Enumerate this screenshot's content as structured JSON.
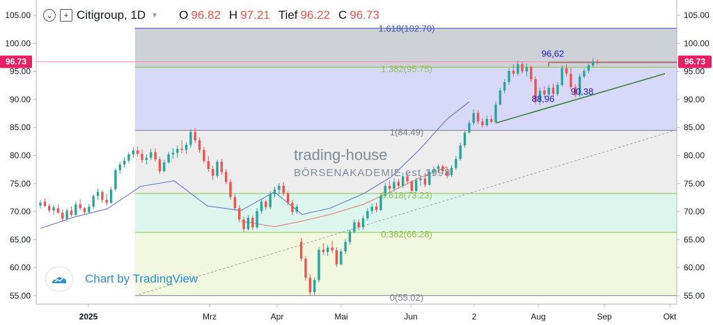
{
  "header": {
    "symbol": "Citigroup, 1D",
    "open_label": "O",
    "open": "96.82",
    "high_label": "H",
    "high": "97.21",
    "low_label": "Tief",
    "low": "96.22",
    "close_label": "C",
    "close": "96.73",
    "value_color": "#ef5350"
  },
  "watermark": {
    "text": "Chart by TradingView",
    "color": "#2a8ed8",
    "icon": "tradingview-cloud-icon"
  },
  "brand": {
    "line1": "trading-house",
    "line2": "BÖRSENAKADEMIE est 1998"
  },
  "chart_data": {
    "type": "candlestick",
    "ylim": [
      53.5,
      107
    ],
    "y_ticks": [
      55,
      60,
      65,
      70,
      75,
      80,
      85,
      90,
      95,
      100,
      105
    ],
    "x_ticks": [
      "2025",
      "Mrz",
      "Apr",
      "Mai",
      "Jun",
      "2",
      "Aug",
      "Sep",
      "Okt"
    ],
    "last_price": {
      "value": 96.73,
      "label": "96.73",
      "color": "#e91e63"
    },
    "fibonacci": [
      {
        "ratio": "1.618",
        "value": 102.7,
        "label": "1.618(102.70)",
        "label_color": "#3f51b5"
      },
      {
        "ratio": "1.382",
        "value": 95.75,
        "label": "1.382(95.75)",
        "label_color": "#8bc34a"
      },
      {
        "ratio": "1",
        "value": 84.49,
        "label": "1(84.49)",
        "label_color": "#787b86"
      },
      {
        "ratio": "0.618",
        "value": 73.23,
        "label": "0.618(73.23)",
        "label_color": "#8bc34a"
      },
      {
        "ratio": "0.382",
        "value": 66.28,
        "label": "0.382(66.28)",
        "label_color": "#8bc34a"
      },
      {
        "ratio": "0",
        "value": 55.02,
        "label": "0(55.02)",
        "label_color": "#787b86"
      }
    ],
    "fib_zone_colors": [
      "#a5abb5",
      "#b8b8f2",
      "#dedede",
      "#bfefe0",
      "#e6f2c4"
    ],
    "annotations": [
      {
        "text": "96,62",
        "value": 96.62,
        "color": "#1a1acc"
      },
      {
        "text": "88,96",
        "value": 88.96,
        "color": "#1a1acc"
      },
      {
        "text": "90,38",
        "value": 90.38,
        "color": "#1a1acc"
      }
    ],
    "resistance_level": 96.62,
    "support_trendline": [
      85.8,
      94.6
    ],
    "long_trendline": [
      55.0,
      84.6
    ],
    "ma_short": {
      "color": "#5c6bc0",
      "points": [
        [
          0,
          67.0
        ],
        [
          0.06,
          69.0
        ],
        [
          0.12,
          70.5
        ],
        [
          0.18,
          74.5
        ],
        [
          0.24,
          75.5
        ],
        [
          0.3,
          71.0
        ],
        [
          0.36,
          70.2
        ],
        [
          0.42,
          73.5
        ],
        [
          0.47,
          69.5
        ],
        [
          0.52,
          70.6
        ],
        [
          0.58,
          73.2
        ],
        [
          0.63,
          76.2
        ],
        [
          0.68,
          81.0
        ],
        [
          0.73,
          86.5
        ],
        [
          0.77,
          89.6
        ]
      ]
    },
    "ma_long": {
      "color": "#e57373",
      "points": [
        [
          0.36,
          68.3
        ],
        [
          0.42,
          67.3
        ],
        [
          0.47,
          68.3
        ],
        [
          0.52,
          69.5
        ],
        [
          0.58,
          71.3
        ],
        [
          0.63,
          73.6
        ],
        [
          0.68,
          76.0
        ],
        [
          0.73,
          78.0
        ]
      ]
    },
    "candles": [
      [
        71.1,
        72.1,
        70.6,
        71.6
      ],
      [
        71.8,
        72.4,
        70.8,
        71.0
      ],
      [
        71.0,
        71.4,
        69.8,
        70.2
      ],
      [
        70.2,
        71.2,
        69.5,
        70.8
      ],
      [
        70.6,
        71.3,
        69.6,
        69.8
      ],
      [
        69.8,
        70.4,
        68.2,
        68.7
      ],
      [
        68.7,
        70.6,
        68.2,
        70.2
      ],
      [
        70.2,
        70.9,
        69.1,
        69.4
      ],
      [
        69.4,
        71.8,
        69.2,
        71.3
      ],
      [
        71.3,
        72.2,
        70.2,
        70.6
      ],
      [
        70.6,
        70.8,
        69.5,
        69.9
      ],
      [
        69.9,
        71.4,
        69.6,
        70.9
      ],
      [
        70.9,
        73.1,
        70.5,
        72.8
      ],
      [
        72.8,
        74.1,
        72.1,
        73.5
      ],
      [
        73.5,
        73.9,
        71.6,
        72.1
      ],
      [
        72.1,
        73.2,
        71.1,
        71.6
      ],
      [
        71.6,
        74.4,
        71.4,
        73.9
      ],
      [
        74.0,
        77.8,
        73.6,
        77.4
      ],
      [
        77.4,
        78.9,
        76.8,
        78.4
      ],
      [
        78.4,
        79.7,
        77.8,
        79.1
      ],
      [
        79.1,
        80.6,
        78.6,
        80.2
      ],
      [
        80.2,
        81.5,
        79.6,
        80.9
      ],
      [
        80.9,
        81.6,
        79.8,
        80.3
      ],
      [
        80.3,
        81.1,
        78.7,
        79.2
      ],
      [
        79.2,
        80.2,
        78.4,
        79.6
      ],
      [
        79.6,
        81.2,
        79.2,
        80.6
      ],
      [
        80.6,
        81.3,
        78.9,
        79.3
      ],
      [
        79.3,
        79.8,
        76.7,
        77.2
      ],
      [
        77.2,
        79.3,
        77.0,
        78.8
      ],
      [
        78.8,
        80.7,
        78.5,
        80.2
      ],
      [
        80.2,
        81.3,
        79.4,
        80.5
      ],
      [
        80.5,
        81.8,
        79.6,
        81.2
      ],
      [
        81.2,
        82.7,
        80.4,
        81.0
      ],
      [
        81.0,
        82.4,
        80.3,
        81.9
      ],
      [
        81.9,
        84.7,
        81.4,
        84.2
      ],
      [
        84.2,
        84.9,
        82.2,
        82.7
      ],
      [
        82.7,
        83.2,
        80.5,
        81.0
      ],
      [
        81.0,
        81.5,
        78.6,
        79.0
      ],
      [
        79.0,
        79.9,
        77.1,
        77.6
      ],
      [
        77.6,
        78.2,
        75.6,
        76.4
      ],
      [
        76.4,
        79.3,
        76.0,
        78.9
      ],
      [
        78.9,
        79.4,
        76.6,
        77.1
      ],
      [
        77.1,
        77.6,
        74.9,
        75.3
      ],
      [
        75.3,
        75.8,
        72.1,
        72.6
      ],
      [
        72.6,
        73.1,
        70.1,
        70.6
      ],
      [
        70.6,
        71.1,
        68.1,
        68.6
      ],
      [
        68.6,
        69.1,
        66.4,
        66.9
      ],
      [
        66.9,
        69.4,
        66.6,
        68.9
      ],
      [
        68.9,
        69.3,
        66.7,
        67.2
      ],
      [
        67.2,
        70.6,
        66.9,
        70.1
      ],
      [
        70.1,
        72.3,
        69.6,
        71.8
      ],
      [
        71.8,
        72.1,
        70.3,
        70.8
      ],
      [
        70.8,
        73.6,
        70.4,
        73.1
      ],
      [
        73.1,
        74.4,
        72.6,
        73.9
      ],
      [
        73.9,
        75.1,
        73.1,
        74.6
      ],
      [
        74.6,
        75.3,
        72.8,
        73.3
      ],
      [
        73.3,
        73.6,
        71.1,
        71.6
      ],
      [
        71.6,
        72.1,
        69.4,
        69.9
      ],
      [
        70.0,
        71.3,
        69.6,
        70.9
      ],
      [
        64.6,
        65.3,
        61.1,
        61.6
      ],
      [
        61.6,
        62.1,
        57.7,
        58.2
      ],
      [
        58.2,
        58.8,
        55.0,
        55.6
      ],
      [
        55.6,
        58.3,
        55.1,
        57.8
      ],
      [
        57.8,
        63.7,
        57.4,
        63.2
      ],
      [
        63.2,
        64.4,
        62.3,
        62.8
      ],
      [
        62.8,
        64.1,
        62.1,
        63.6
      ],
      [
        63.6,
        64.8,
        62.6,
        63.1
      ],
      [
        63.1,
        63.6,
        60.1,
        60.6
      ],
      [
        60.6,
        63.4,
        60.4,
        62.9
      ],
      [
        62.9,
        65.1,
        62.4,
        64.6
      ],
      [
        64.6,
        66.8,
        64.1,
        66.4
      ],
      [
        66.4,
        68.6,
        66.1,
        68.1
      ],
      [
        68.1,
        68.6,
        66.7,
        67.2
      ],
      [
        67.2,
        69.3,
        66.8,
        68.8
      ],
      [
        68.8,
        70.6,
        68.4,
        70.1
      ],
      [
        70.1,
        71.4,
        69.6,
        70.9
      ],
      [
        70.9,
        71.6,
        69.9,
        70.3
      ],
      [
        70.3,
        73.3,
        70.1,
        72.8
      ],
      [
        72.8,
        75.1,
        72.6,
        74.6
      ],
      [
        74.6,
        75.6,
        73.4,
        74.1
      ],
      [
        74.1,
        75.9,
        73.6,
        75.3
      ],
      [
        75.3,
        75.8,
        74.1,
        74.6
      ],
      [
        74.6,
        76.9,
        74.2,
        76.3
      ],
      [
        76.3,
        76.8,
        75.0,
        75.4
      ],
      [
        75.4,
        75.6,
        73.2,
        73.7
      ],
      [
        73.7,
        76.0,
        73.4,
        75.6
      ],
      [
        75.6,
        76.5,
        74.6,
        75.9
      ],
      [
        75.9,
        76.9,
        74.4,
        74.8
      ],
      [
        74.8,
        77.6,
        74.6,
        77.1
      ],
      [
        77.1,
        78.1,
        76.4,
        77.6
      ],
      [
        77.6,
        78.5,
        76.9,
        78.1
      ],
      [
        78.1,
        78.4,
        76.8,
        77.2
      ],
      [
        77.2,
        78.0,
        75.9,
        76.5
      ],
      [
        76.5,
        78.3,
        76.2,
        77.8
      ],
      [
        77.8,
        79.9,
        77.4,
        79.4
      ],
      [
        79.4,
        82.3,
        79.1,
        81.8
      ],
      [
        81.8,
        84.6,
        81.4,
        84.1
      ],
      [
        84.1,
        86.3,
        83.8,
        85.8
      ],
      [
        85.8,
        88.2,
        85.4,
        87.6
      ],
      [
        87.6,
        88.1,
        85.6,
        86.1
      ],
      [
        86.1,
        86.6,
        85.0,
        85.4
      ],
      [
        85.4,
        87.1,
        85.1,
        86.5
      ],
      [
        86.5,
        87.2,
        85.7,
        86.0
      ],
      [
        86.0,
        89.6,
        85.7,
        89.1
      ],
      [
        89.1,
        92.1,
        88.9,
        91.6
      ],
      [
        91.6,
        93.6,
        91.1,
        93.1
      ],
      [
        93.1,
        95.6,
        92.6,
        95.1
      ],
      [
        95.1,
        96.3,
        94.1,
        94.6
      ],
      [
        94.6,
        96.9,
        94.2,
        96.3
      ],
      [
        96.3,
        96.7,
        94.6,
        95.0
      ],
      [
        95.0,
        96.4,
        94.1,
        95.8
      ],
      [
        95.8,
        96.1,
        93.1,
        93.6
      ],
      [
        93.6,
        94.1,
        89.1,
        89.6
      ],
      [
        89.6,
        92.1,
        89.0,
        91.6
      ],
      [
        91.6,
        92.4,
        90.4,
        90.9
      ],
      [
        90.9,
        92.6,
        90.5,
        92.1
      ],
      [
        92.1,
        92.8,
        90.6,
        91.0
      ],
      [
        91.0,
        93.1,
        90.6,
        92.6
      ],
      [
        92.6,
        96.1,
        92.3,
        95.6
      ],
      [
        95.6,
        96.3,
        94.1,
        94.6
      ],
      [
        94.6,
        95.6,
        91.8,
        92.2
      ],
      [
        92.2,
        92.7,
        90.4,
        90.8
      ],
      [
        90.8,
        94.6,
        90.5,
        94.1
      ],
      [
        94.1,
        95.6,
        93.7,
        95.1
      ],
      [
        95.1,
        96.4,
        94.6,
        96.1
      ],
      [
        96.1,
        97.4,
        95.7,
        96.8
      ],
      [
        96.8,
        97.2,
        96.2,
        96.7
      ]
    ]
  }
}
